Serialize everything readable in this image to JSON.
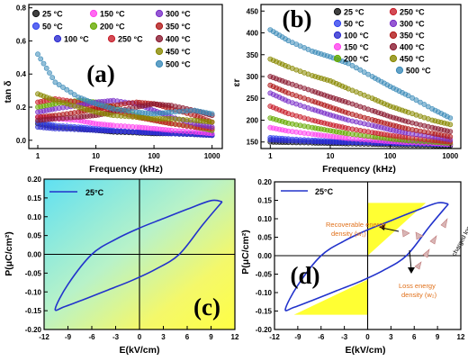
{
  "panels": {
    "a": {
      "label": "(a)",
      "ylabel": "tan δ",
      "xlabel": "Frequency (kHz)",
      "xticks": [
        "1",
        "10",
        "100",
        "1000"
      ],
      "yticks": [
        "0.0",
        "0.2",
        "0.4",
        "0.6",
        "0.8"
      ],
      "legend": [
        "25 °C",
        "50 °C",
        "100 °C",
        "150 °C",
        "200 °C",
        "250 °C",
        "300 °C",
        "350 °C",
        "400 °C",
        "450 °C",
        "500 °C"
      ]
    },
    "b": {
      "label": "(b)",
      "ylabel": "εr",
      "xlabel": "Frequency (kHz)",
      "xticks": [
        "1",
        "10",
        "100",
        "1000"
      ],
      "yticks": [
        "150",
        "200",
        "250",
        "300",
        "350",
        "400",
        "450"
      ],
      "legend": [
        "25 °C",
        "50 °C",
        "100 °C",
        "150 °C",
        "200 °C",
        "250 °C",
        "300 °C",
        "350 °C",
        "400 °C",
        "450 °C",
        "500 °C"
      ]
    },
    "c": {
      "label": "(c)",
      "ylabel": "P(μC/cm²)",
      "xlabel": "E(kV/cm)",
      "xticks": [
        "-12",
        "-9",
        "-6",
        "-3",
        "0",
        "3",
        "6",
        "9",
        "12"
      ],
      "yticks": [
        "-0.20",
        "-0.15",
        "-0.10",
        "-0.05",
        "0.00",
        "0.05",
        "0.10",
        "0.15",
        "0.20"
      ],
      "legend": [
        "25°C"
      ]
    },
    "d": {
      "label": "(d)",
      "ylabel": "P(μC/cm²)",
      "xlabel": "E(kV/cm)",
      "xticks": [
        "-12",
        "-9",
        "-6",
        "-3",
        "0",
        "3",
        "6",
        "9",
        "12"
      ],
      "yticks": [
        "-0.20",
        "-0.15",
        "-0.10",
        "-0.05",
        "0.00",
        "0.05",
        "0.10",
        "0.15",
        "0.20"
      ],
      "legend": [
        "25°C"
      ],
      "annotations": {
        "recoverable": [
          "Recoverable energy",
          "density (w₁)"
        ],
        "loss": [
          "Loss energy",
          "density (w₂)"
        ],
        "charged": "charged loop"
      }
    }
  },
  "colors": {
    "series": [
      "#111111",
      "#3344ee",
      "#2a2ad0",
      "#ff44ee",
      "#66aa00",
      "#c81e2a",
      "#7a2fc8",
      "#b01818",
      "#8a1a30",
      "#888800",
      "#3a8ab8"
    ],
    "loop": "#2233cc",
    "shade": "#ffff33",
    "bg_cyan": "#7fe8f5"
  },
  "chart_data": [
    {
      "type": "line",
      "title": "(a)",
      "xlabel": "Frequency (kHz)",
      "ylabel": "tan δ",
      "xscale": "log",
      "xlim": [
        0.7,
        1500
      ],
      "ylim": [
        -0.05,
        0.82
      ],
      "x": [
        1,
        2,
        5,
        10,
        20,
        50,
        100,
        200,
        500,
        1000
      ],
      "series": [
        {
          "name": "25 °C",
          "values": [
            0.1,
            0.08,
            0.07,
            0.06,
            0.05,
            0.045,
            0.04,
            0.04,
            0.035,
            0.03
          ]
        },
        {
          "name": "50 °C",
          "values": [
            0.11,
            0.09,
            0.08,
            0.07,
            0.06,
            0.05,
            0.045,
            0.04,
            0.04,
            0.035
          ]
        },
        {
          "name": "100 °C",
          "values": [
            0.08,
            0.07,
            0.065,
            0.06,
            0.055,
            0.05,
            0.045,
            0.04,
            0.035,
            0.03
          ]
        },
        {
          "name": "150 °C",
          "values": [
            0.14,
            0.13,
            0.12,
            0.1,
            0.09,
            0.08,
            0.07,
            0.06,
            0.05,
            0.04
          ]
        },
        {
          "name": "200 °C",
          "values": [
            0.2,
            0.22,
            0.24,
            0.23,
            0.2,
            0.15,
            0.12,
            0.1,
            0.08,
            0.06
          ]
        },
        {
          "name": "250 °C",
          "values": [
            0.23,
            0.25,
            0.23,
            0.2,
            0.18,
            0.14,
            0.12,
            0.1,
            0.08,
            0.07
          ]
        },
        {
          "name": "300 °C",
          "values": [
            0.17,
            0.19,
            0.21,
            0.23,
            0.24,
            0.22,
            0.18,
            0.14,
            0.1,
            0.08
          ]
        },
        {
          "name": "350 °C",
          "values": [
            0.14,
            0.15,
            0.17,
            0.19,
            0.21,
            0.23,
            0.22,
            0.19,
            0.15,
            0.11
          ]
        },
        {
          "name": "400 °C",
          "values": [
            0.12,
            0.13,
            0.14,
            0.15,
            0.17,
            0.2,
            0.22,
            0.21,
            0.18,
            0.15
          ]
        },
        {
          "name": "450 °C",
          "values": [
            0.28,
            0.24,
            0.2,
            0.17,
            0.15,
            0.14,
            0.13,
            0.13,
            0.12,
            0.11
          ]
        },
        {
          "name": "500 °C",
          "values": [
            0.52,
            0.35,
            0.26,
            0.22,
            0.19,
            0.17,
            0.16,
            0.17,
            0.18,
            0.16
          ]
        }
      ]
    },
    {
      "type": "line",
      "title": "(b)",
      "xlabel": "Frequency (kHz)",
      "ylabel": "εr",
      "xscale": "log",
      "xlim": [
        0.7,
        1500
      ],
      "ylim": [
        135,
        465
      ],
      "x": [
        1,
        2,
        5,
        10,
        20,
        50,
        100,
        200,
        500,
        1000
      ],
      "series": [
        {
          "name": "25 °C",
          "values": [
            150,
            149,
            148,
            147,
            146,
            145,
            144,
            143,
            142,
            141
          ]
        },
        {
          "name": "50 °C",
          "values": [
            160,
            157,
            154,
            152,
            150,
            148,
            147,
            146,
            145,
            144
          ]
        },
        {
          "name": "100 °C",
          "values": [
            155,
            153,
            151,
            150,
            149,
            148,
            147,
            146,
            145,
            144
          ]
        },
        {
          "name": "150 °C",
          "values": [
            183,
            175,
            168,
            163,
            158,
            154,
            151,
            149,
            147,
            145
          ]
        },
        {
          "name": "200 °C",
          "values": [
            205,
            193,
            183,
            176,
            169,
            162,
            157,
            153,
            150,
            147
          ]
        },
        {
          "name": "250 °C",
          "values": [
            232,
            215,
            200,
            190,
            181,
            172,
            165,
            160,
            154,
            150
          ]
        },
        {
          "name": "300 °C",
          "values": [
            262,
            243,
            225,
            212,
            200,
            188,
            178,
            170,
            162,
            155
          ]
        },
        {
          "name": "350 °C",
          "values": [
            280,
            262,
            244,
            230,
            216,
            201,
            190,
            180,
            170,
            162
          ]
        },
        {
          "name": "400 °C",
          "values": [
            300,
            285,
            267,
            253,
            240,
            222,
            208,
            196,
            183,
            174
          ]
        },
        {
          "name": "450 °C",
          "values": [
            340,
            322,
            302,
            290,
            272,
            250,
            232,
            218,
            200,
            190
          ]
        },
        {
          "name": "500 °C",
          "values": [
            407,
            382,
            358,
            345,
            330,
            300,
            277,
            256,
            226,
            205
          ]
        }
      ]
    },
    {
      "type": "line",
      "title": "(c)",
      "xlabel": "E(kV/cm)",
      "ylabel": "P(μC/cm²)",
      "xlim": [
        -12,
        12
      ],
      "ylim": [
        -0.2,
        0.2
      ],
      "series": [
        {
          "name": "25°C",
          "x": [
            10.4,
            9.0,
            6.0,
            3.0,
            0.0,
            -3.0,
            -6.0,
            -9.0,
            -10.6,
            -9.5,
            -7.0,
            -4.0,
            -1.0,
            2.0,
            5.0,
            8.0,
            10.4
          ],
          "y": [
            0.14,
            0.143,
            0.12,
            0.095,
            0.07,
            0.04,
            0.0,
            -0.08,
            -0.145,
            -0.14,
            -0.12,
            -0.095,
            -0.07,
            -0.04,
            0.0,
            0.08,
            0.14
          ]
        }
      ]
    },
    {
      "type": "line",
      "title": "(d)",
      "xlabel": "E(kV/cm)",
      "ylabel": "P(μC/cm²)",
      "xlim": [
        -12,
        12
      ],
      "ylim": [
        -0.2,
        0.2
      ],
      "series": [
        {
          "name": "25°C",
          "x": [
            10.4,
            9.0,
            6.0,
            3.0,
            0.0,
            -3.0,
            -6.0,
            -9.0,
            -10.6,
            -9.5,
            -7.0,
            -4.0,
            -1.0,
            2.0,
            5.0,
            8.0,
            10.4
          ],
          "y": [
            0.14,
            0.143,
            0.12,
            0.095,
            0.07,
            0.04,
            0.0,
            -0.08,
            -0.145,
            -0.14,
            -0.12,
            -0.095,
            -0.07,
            -0.04,
            0.0,
            0.08,
            0.14
          ]
        }
      ]
    }
  ]
}
